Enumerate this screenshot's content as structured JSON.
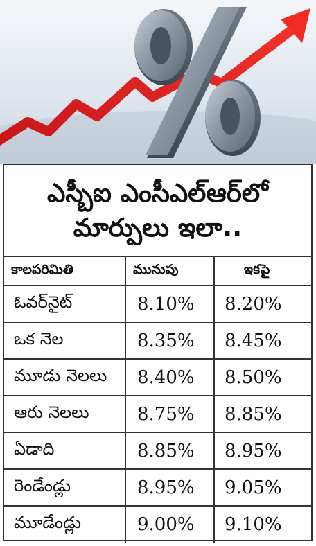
{
  "headline": {
    "line1": "ఎస్బీఐ ఎంసీఎల్ఆర్‌లో",
    "line2": "మార్పులు ఇలా.."
  },
  "table": {
    "headers": [
      "కాలపరిమితి",
      "మునుపు",
      "ఇకపై"
    ],
    "rows": [
      {
        "term": "ఓవర్‌నైట్",
        "before": "8.10%",
        "after": "8.20%"
      },
      {
        "term": "ఒక నెల",
        "before": "8.35%",
        "after": "8.45%"
      },
      {
        "term": "మూడు నెలలు",
        "before": "8.40%",
        "after": "8.50%"
      },
      {
        "term": "ఆరు నెలలు",
        "before": "8.75%",
        "after": "8.85%"
      },
      {
        "term": "ఏడాది",
        "before": "8.85%",
        "after": "8.95%"
      },
      {
        "term": "రెండేండ్లు",
        "before": "8.95%",
        "after": "9.05%"
      },
      {
        "term": "మూడేండ్లు",
        "before": "9.00%",
        "after": "9.10%"
      }
    ]
  },
  "banner": {
    "icon": "percent-symbol-with-rising-arrow",
    "arrow_color": "#e0241f",
    "symbol_color": "#8c96a3"
  }
}
